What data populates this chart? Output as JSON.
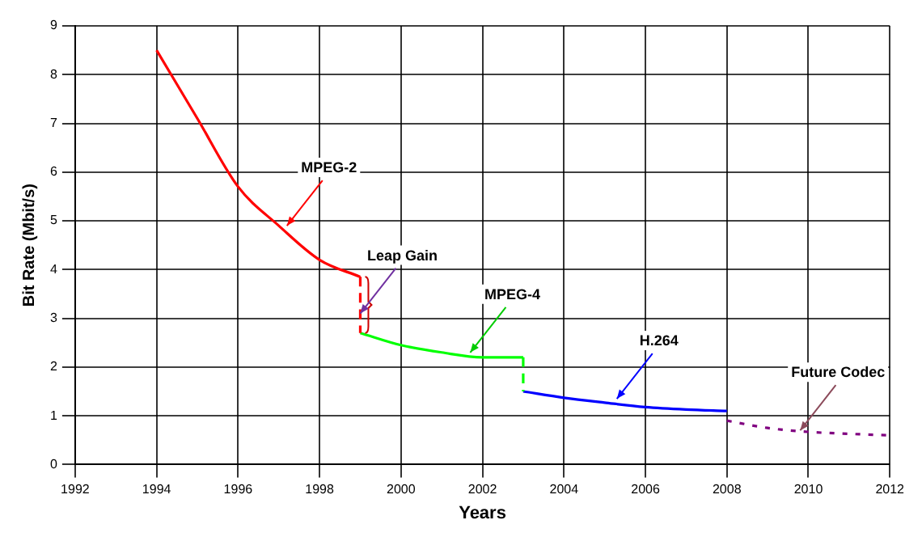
{
  "chart_data": {
    "type": "line",
    "xlabel": "Years",
    "ylabel": "Bit Rate (Mbit/s)",
    "xlim": [
      1992,
      2012
    ],
    "xticks": [
      1992,
      1994,
      1996,
      1998,
      2000,
      2002,
      2004,
      2006,
      2008,
      2010,
      2012
    ],
    "ylim": [
      0,
      9
    ],
    "yticks": [
      0,
      1,
      2,
      3,
      4,
      5,
      6,
      7,
      8,
      9
    ],
    "grid": true,
    "legend": false,
    "marker": "none",
    "series": [
      {
        "color": "#ff0000",
        "line_style": "solid",
        "x": [
          1994,
          1995,
          1996,
          1997,
          1998,
          1999
        ],
        "values": [
          8.5,
          7.1,
          5.7,
          4.9,
          4.2,
          3.85
        ]
      },
      {
        "color": "#ff0000",
        "line_style": "dashed",
        "x": [
          1999,
          1999
        ],
        "values": [
          3.85,
          2.7
        ]
      },
      {
        "color": "#00ff00",
        "line_style": "solid",
        "x": [
          1999,
          2000,
          2001,
          2002,
          2003
        ],
        "values": [
          2.7,
          2.45,
          2.3,
          2.2,
          2.2
        ]
      },
      {
        "color": "#00ff00",
        "line_style": "dashed",
        "x": [
          2003,
          2003
        ],
        "values": [
          2.2,
          1.5
        ]
      },
      {
        "color": "#0000ff",
        "line_style": "solid",
        "x": [
          2003,
          2004,
          2005,
          2006,
          2007,
          2008
        ],
        "values": [
          1.5,
          1.37,
          1.27,
          1.18,
          1.13,
          1.1
        ]
      },
      {
        "color": "#800080",
        "line_style": "dotted",
        "x": [
          2008,
          2009,
          2010,
          2011,
          2012
        ],
        "values": [
          0.9,
          0.75,
          0.67,
          0.63,
          0.6
        ]
      }
    ],
    "annotations": [
      {
        "text": "MPEG-2",
        "x": 1997.2,
        "y": 4.9
      },
      {
        "text": "Leap Gain",
        "x": 1999,
        "y": 3.1
      },
      {
        "text": "MPEG-4",
        "x": 2001.7,
        "y": 2.3
      },
      {
        "text": "H.264",
        "x": 2005.3,
        "y": 1.35
      },
      {
        "text": "Future Codec",
        "x": 2009.8,
        "y": 0.7
      }
    ]
  }
}
